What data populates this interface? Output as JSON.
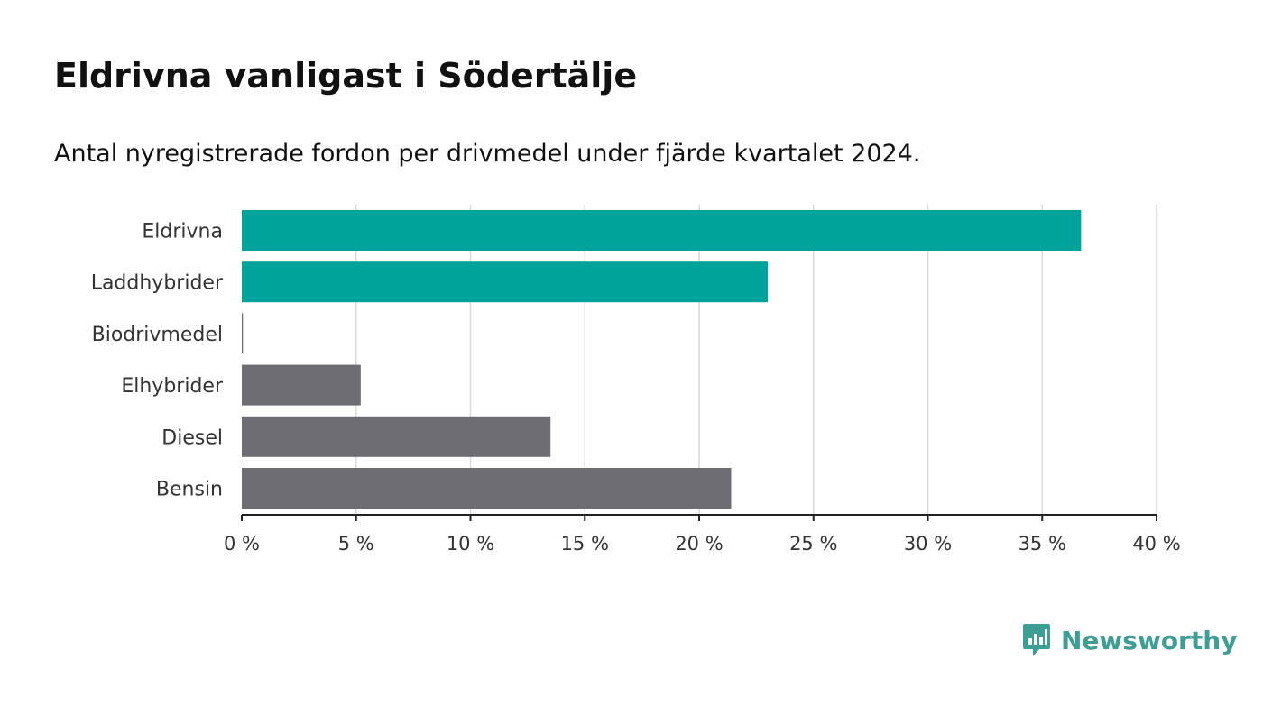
{
  "chart_data": {
    "type": "bar",
    "orientation": "horizontal",
    "title": "Eldrivna vanligast i Södertälje",
    "subtitle": "Antal nyregistrerade fordon per drivmedel under fjärde kvartalet 2024.",
    "categories": [
      "Eldrivna",
      "Laddhybrider",
      "Biodrivmedel",
      "Elhybrider",
      "Diesel",
      "Bensin"
    ],
    "values": [
      36.7,
      23.0,
      0.05,
      5.2,
      13.5,
      21.4
    ],
    "colors": [
      "#00a39a",
      "#00a39a",
      "#6e6d73",
      "#6e6d73",
      "#6e6d73",
      "#6e6d73"
    ],
    "xlim": [
      0,
      40
    ],
    "ticks": [
      0,
      5,
      10,
      15,
      20,
      25,
      30,
      35,
      40
    ],
    "tick_labels": [
      "0 %",
      "5 %",
      "10 %",
      "15 %",
      "20 %",
      "25 %",
      "30 %",
      "35 %",
      "40 %"
    ],
    "xlabel": "",
    "ylabel": "",
    "grid": true
  },
  "brand": {
    "name": "Newsworthy",
    "color": "#3d9e94",
    "icon": "chart-speech-bubble-icon"
  }
}
